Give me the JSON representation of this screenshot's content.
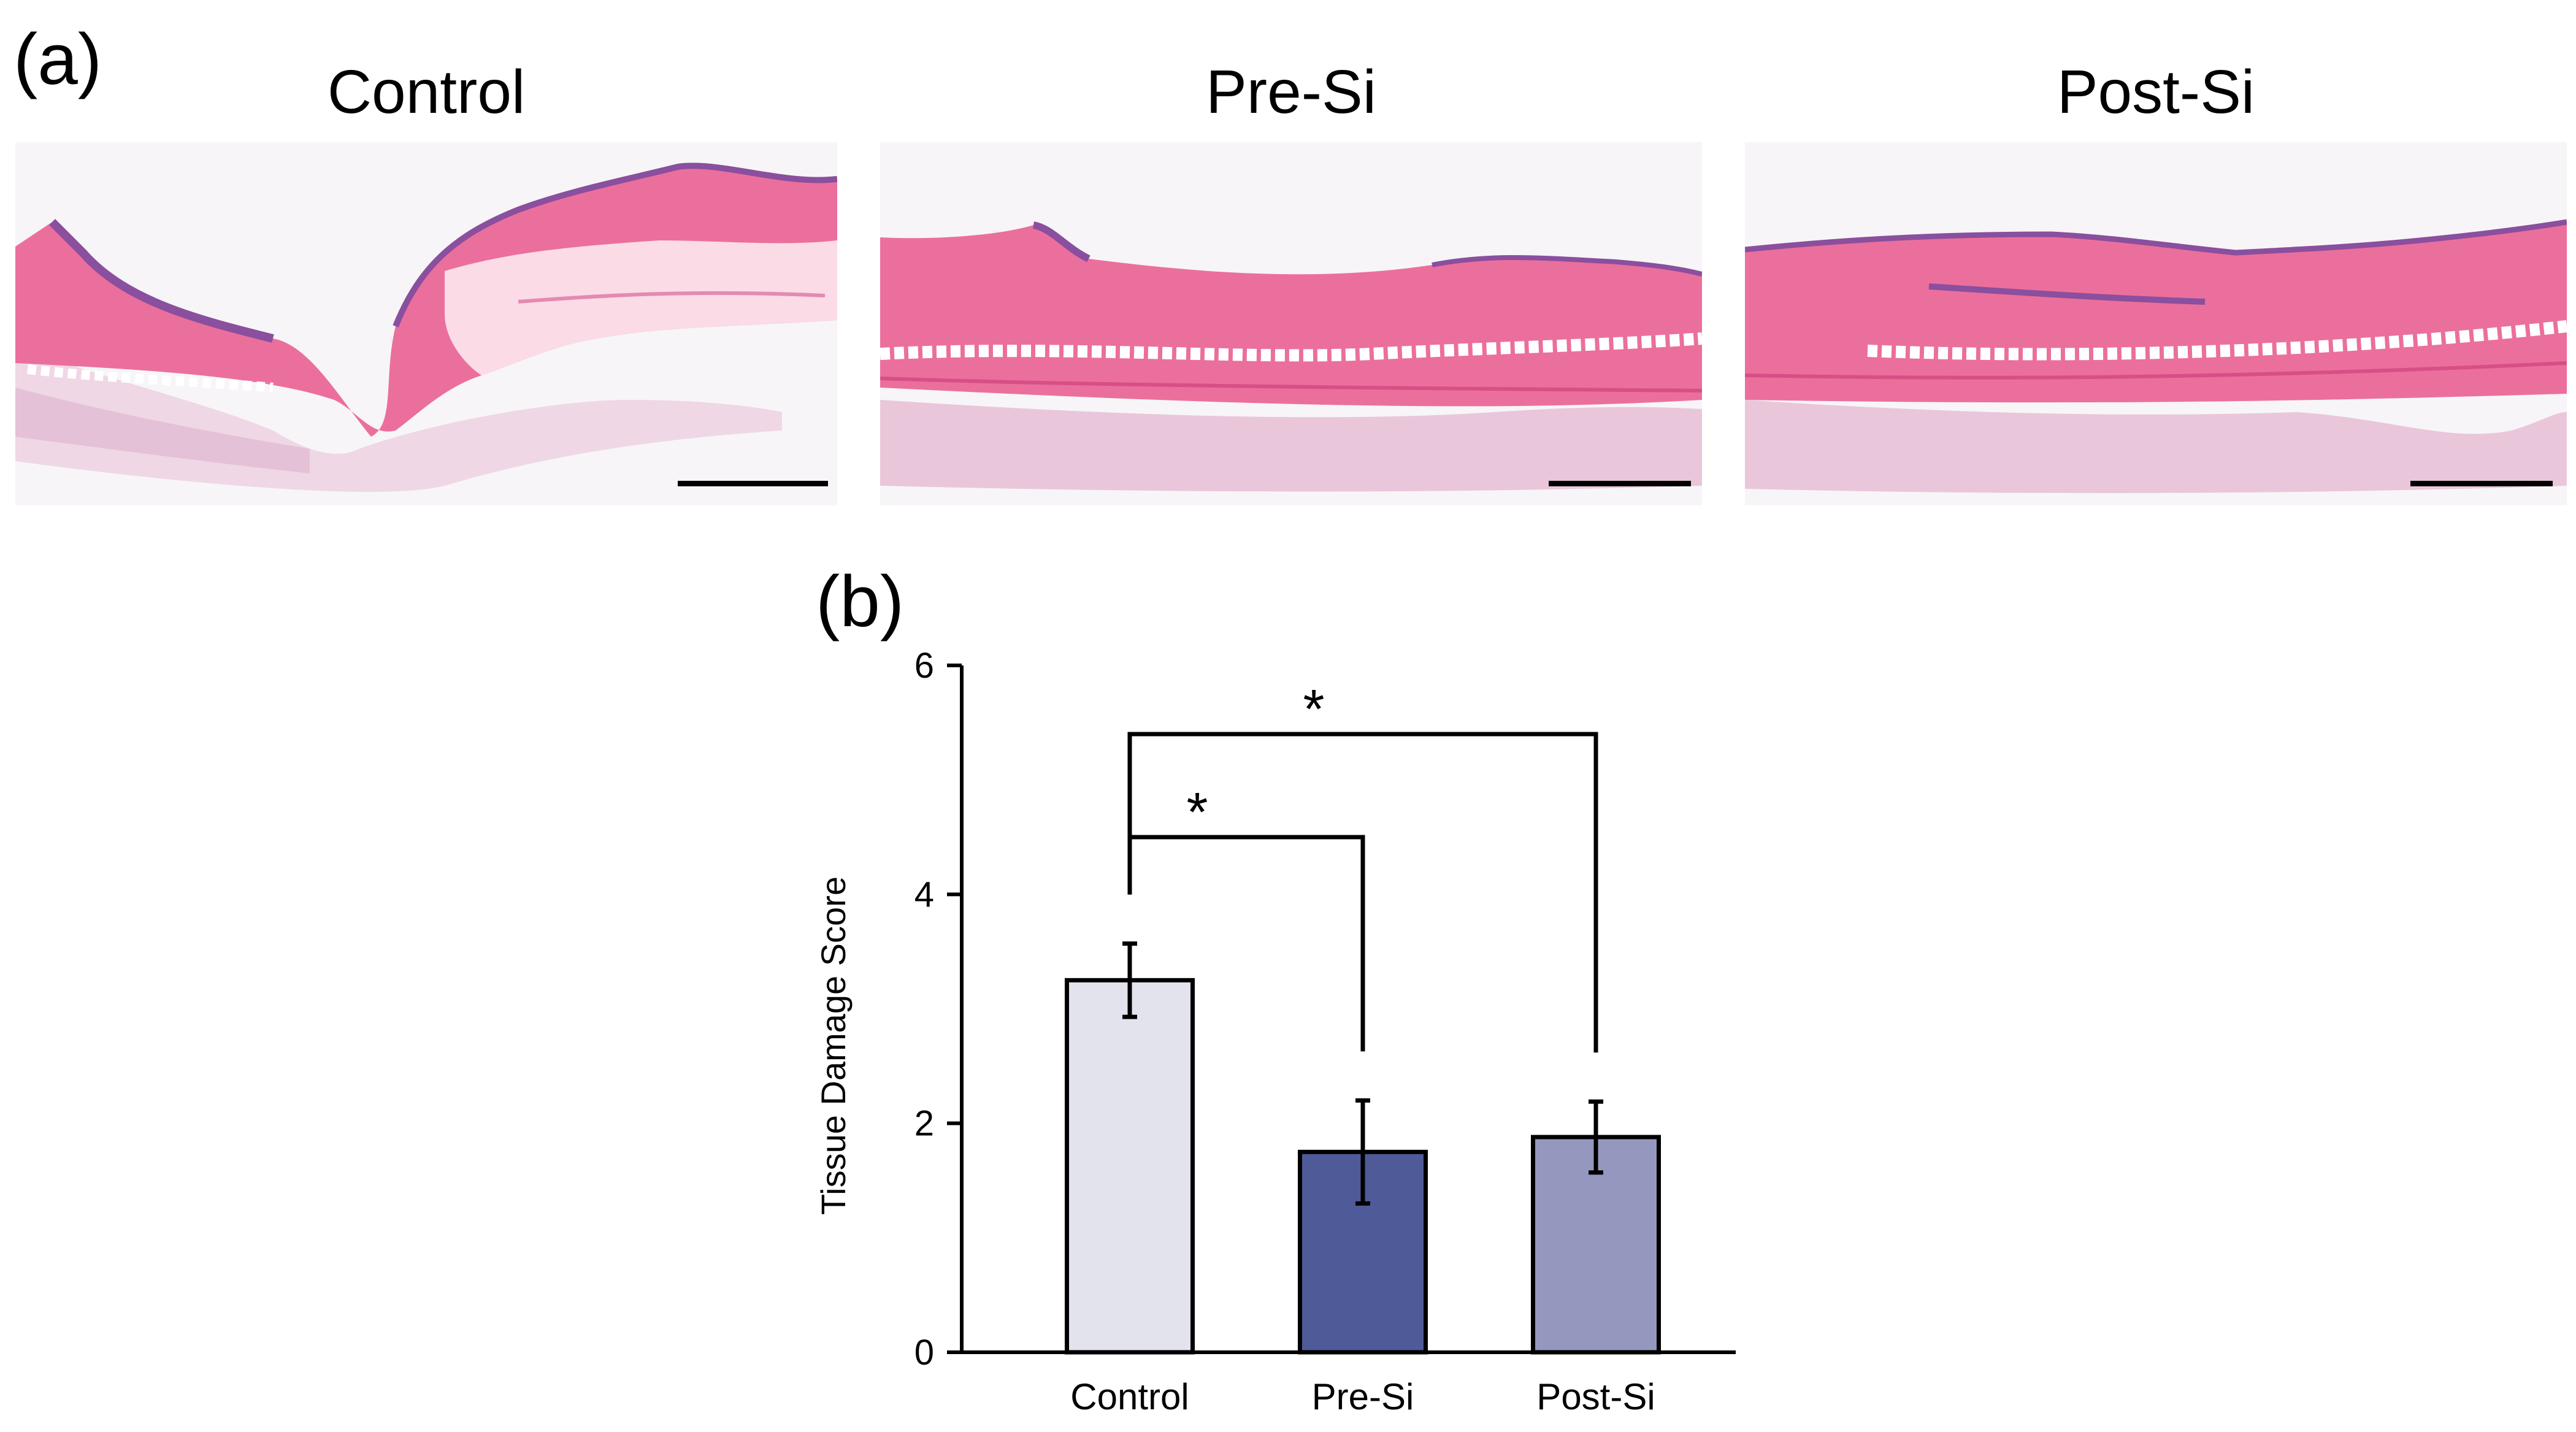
{
  "panel_a": {
    "label": "(a)",
    "images": [
      {
        "title": "Control",
        "description": "H&E stained skin section, deep notch with fat vacuoles"
      },
      {
        "title": "Pre-Si",
        "description": "H&E stained skin section, flatter layered tissue"
      },
      {
        "title": "Post-Si",
        "description": "H&E stained skin section, flat layered tissue"
      }
    ],
    "colors": {
      "tissue": "#eb6f9c",
      "fat_outline": "#d64f86",
      "dermis": "#e8a8c8",
      "epidermis": "#8a4f9e",
      "background": "#f7f5f7",
      "scalebar": "#000000"
    }
  },
  "chart_data": {
    "panel_label": "(b)",
    "type": "bar",
    "categories": [
      "Control",
      "Pre-Si",
      "Post-Si"
    ],
    "values": [
      3.25,
      1.75,
      1.88
    ],
    "errors": [
      0.32,
      0.45,
      0.31
    ],
    "colors": [
      "#e2e3ed",
      "#4f5b98",
      "#9598be"
    ],
    "ylabel": "Tissue Damage Score",
    "xlabel": "",
    "ylim": [
      0,
      6
    ],
    "yticks": [
      0,
      2,
      4,
      6
    ],
    "significance": [
      {
        "from": "Control",
        "to": "Pre-Si",
        "level": 4.5,
        "label": "*"
      },
      {
        "from": "Control",
        "to": "Post-Si",
        "level": 5.4,
        "label": "*"
      }
    ],
    "grid": false
  }
}
